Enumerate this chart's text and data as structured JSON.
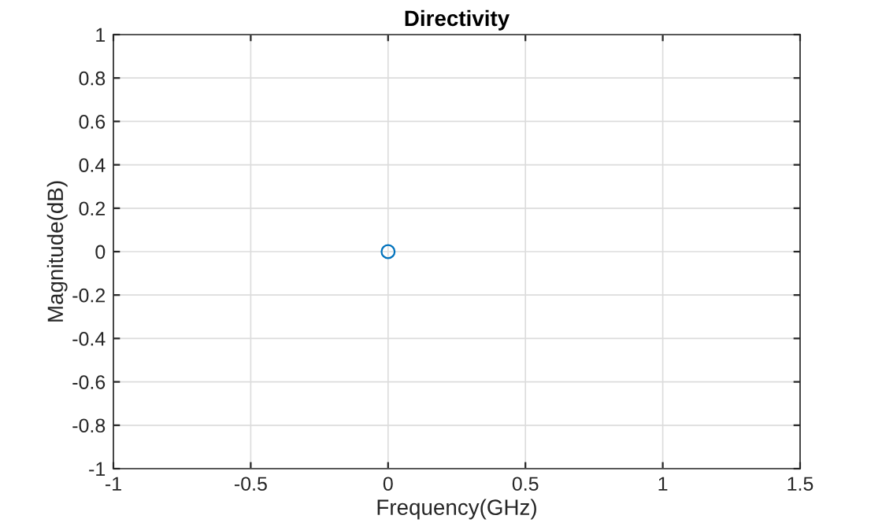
{
  "chart_data": {
    "type": "scatter",
    "title": "Directivity",
    "xlabel": "Frequency(GHz)",
    "ylabel": "Magnitude(dB)",
    "x": [
      0
    ],
    "values": [
      0
    ],
    "color": "#0072bd",
    "marker": "circle",
    "xlim": [
      -1,
      1.5
    ],
    "ylim": [
      -1,
      1
    ],
    "xticks": [
      -1,
      -0.5,
      0,
      0.5,
      1,
      1.5
    ],
    "yticks": [
      -1,
      -0.8,
      -0.6,
      -0.4,
      -0.2,
      0,
      0.2,
      0.4,
      0.6,
      0.8,
      1
    ],
    "grid": true
  }
}
